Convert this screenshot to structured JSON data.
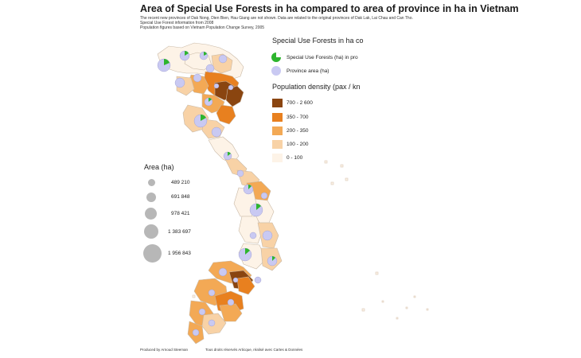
{
  "title": "Area of Special Use Forests in ha compared to area of province in ha in Vietnam",
  "notes": [
    "The recent new provinces of Dak Nong, Dien Bien, Hau Giang are not shown. Data are related to the original provinces of Dak Lak, Lai Chau and Can Tho.",
    "Special Use Forest information from 2008",
    "Population figures based on Vietnam Population Change Survey, 2005"
  ],
  "legend_forest": {
    "title": "Special Use Forests in ha co",
    "items": [
      {
        "label": "Special Use Forests (ha) in pro",
        "color": "#2db52d",
        "icon": "green-pie-icon"
      },
      {
        "label": "Province area (ha)",
        "color": "#c9c9f2",
        "icon": "lavender-circle-icon"
      }
    ]
  },
  "legend_density": {
    "title": "Population density (pax / kn",
    "classes": [
      {
        "label": "700 - 2 600",
        "color": "#8a4510"
      },
      {
        "label": "350 - 700",
        "color": "#e8801f"
      },
      {
        "label": "200 - 350",
        "color": "#f3a955"
      },
      {
        "label": "100 - 200",
        "color": "#f8d2a6"
      },
      {
        "label": "0 - 100",
        "color": "#fdf3e7"
      }
    ]
  },
  "legend_area": {
    "title": "Area (ha)",
    "values": [
      "489 210",
      "691 848",
      "978 421",
      "1 383 697",
      "1 956 843"
    ]
  },
  "footer": {
    "producer": "Produced by Arnoud Steeman",
    "rights": "Tous droits réservés Articque, réalisé avec Cartes & Données"
  },
  "colors": {
    "border": "#c8b8a8",
    "sea": "#ffffff"
  }
}
